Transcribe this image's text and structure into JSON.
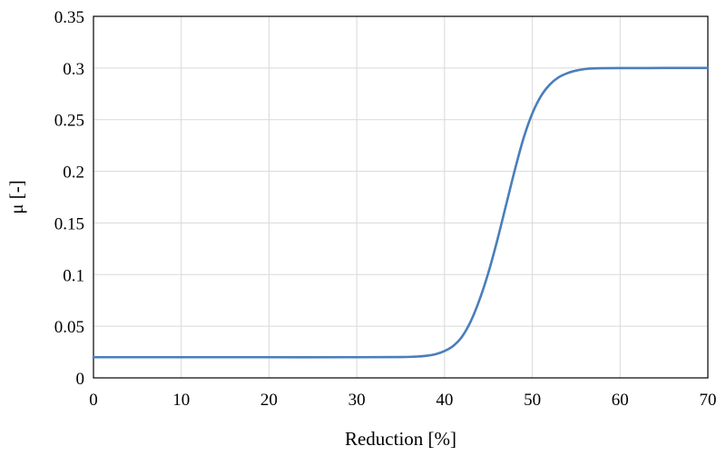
{
  "chart_data": {
    "type": "line",
    "title": "",
    "xlabel": "Reduction [%]",
    "ylabel": "μ [-]",
    "xlim": [
      0,
      70
    ],
    "ylim": [
      0,
      0.35
    ],
    "xticks": [
      0,
      10,
      20,
      30,
      40,
      50,
      60,
      70
    ],
    "yticks": [
      0,
      0.05,
      0.1,
      0.15,
      0.2,
      0.25,
      0.3,
      0.35
    ],
    "xtick_labels": [
      "0",
      "10",
      "20",
      "30",
      "40",
      "50",
      "60",
      "70"
    ],
    "ytick_labels": [
      "0",
      "0.05",
      "0.1",
      "0.15",
      "0.2",
      "0.25",
      "0.3",
      "0.35"
    ],
    "grid": true,
    "legend": "none",
    "series": [
      {
        "color": "#4a7ebb",
        "x": [
          0,
          10,
          20,
          30,
          35,
          37,
          38,
          39,
          40,
          41,
          42,
          43,
          44,
          45,
          46,
          47,
          48,
          49,
          50,
          51,
          52,
          53,
          54,
          55,
          56,
          57,
          58,
          60,
          65,
          70
        ],
        "y": [
          0.02,
          0.02,
          0.02,
          0.02,
          0.0202,
          0.0207,
          0.0215,
          0.023,
          0.026,
          0.031,
          0.04,
          0.055,
          0.076,
          0.102,
          0.133,
          0.167,
          0.201,
          0.232,
          0.256,
          0.273,
          0.284,
          0.291,
          0.295,
          0.2975,
          0.299,
          0.2996,
          0.2998,
          0.2999,
          0.3,
          0.3
        ]
      }
    ]
  }
}
